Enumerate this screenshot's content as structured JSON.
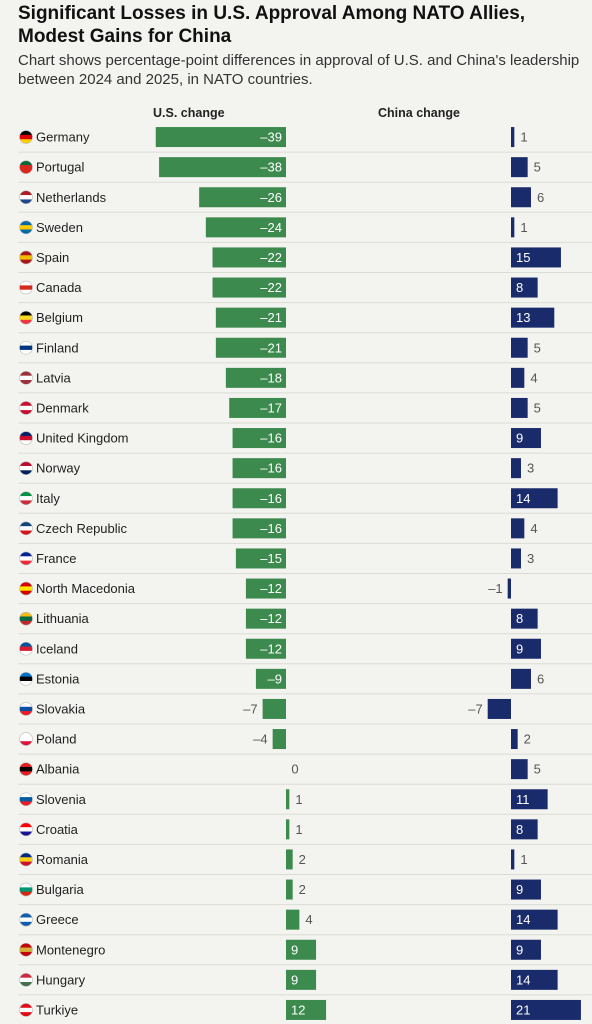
{
  "title": "Significant Losses in U.S. Approval Among NATO Allies, Modest Gains for China",
  "subtitle": "Chart shows percentage-point differences in approval of U.S. and China's leadership between 2024 and 2025, in NATO countries.",
  "colors": {
    "us_bar": "#3d8a4e",
    "china_bar": "#1a2b6b",
    "value_outside": "#555555",
    "value_inside": "#ffffff",
    "row_separator": "#dcdcd6",
    "axis": "#c9c9c3"
  },
  "chart_data": [
    {
      "type": "bar",
      "orientation": "horizontal",
      "title": "U.S. change",
      "categories": [
        "Germany",
        "Portugal",
        "Netherlands",
        "Sweden",
        "Spain",
        "Canada",
        "Belgium",
        "Finland",
        "Latvia",
        "Denmark",
        "United Kingdom",
        "Norway",
        "Italy",
        "Czech Republic",
        "France",
        "North Macedonia",
        "Lithuania",
        "Iceland",
        "Estonia",
        "Slovakia",
        "Poland",
        "Albania",
        "Slovenia",
        "Croatia",
        "Romania",
        "Bulgaria",
        "Greece",
        "Montenegro",
        "Hungary",
        "Turkiye"
      ],
      "values": [
        -39,
        -38,
        -26,
        -24,
        -22,
        -22,
        -21,
        -21,
        -18,
        -17,
        -16,
        -16,
        -16,
        -16,
        -15,
        -12,
        -12,
        -12,
        -9,
        -7,
        -4,
        0,
        1,
        1,
        2,
        2,
        4,
        9,
        9,
        12
      ],
      "value_labels": [
        "–39",
        "–38",
        "–26",
        "–24",
        "–22",
        "–22",
        "–21",
        "–21",
        "–18",
        "–17",
        "–16",
        "–16",
        "–16",
        "–16",
        "–15",
        "–12",
        "–12",
        "–12",
        "–9",
        "–7",
        "–4",
        "0",
        "1",
        "1",
        "2",
        "2",
        "4",
        "9",
        "9",
        "12"
      ]
    },
    {
      "type": "bar",
      "orientation": "horizontal",
      "title": "China change",
      "categories": [
        "Germany",
        "Portugal",
        "Netherlands",
        "Sweden",
        "Spain",
        "Canada",
        "Belgium",
        "Finland",
        "Latvia",
        "Denmark",
        "United Kingdom",
        "Norway",
        "Italy",
        "Czech Republic",
        "France",
        "North Macedonia",
        "Lithuania",
        "Iceland",
        "Estonia",
        "Slovakia",
        "Poland",
        "Albania",
        "Slovenia",
        "Croatia",
        "Romania",
        "Bulgaria",
        "Greece",
        "Montenegro",
        "Hungary",
        "Turkiye"
      ],
      "values": [
        1,
        5,
        6,
        1,
        15,
        8,
        13,
        5,
        4,
        5,
        9,
        3,
        14,
        4,
        3,
        -1,
        8,
        9,
        6,
        -7,
        2,
        5,
        11,
        8,
        1,
        9,
        14,
        9,
        14,
        21
      ],
      "value_labels": [
        "1",
        "5",
        "6",
        "1",
        "15",
        "8",
        "13",
        "5",
        "4",
        "5",
        "9",
        "3",
        "14",
        "4",
        "3",
        "–1",
        "8",
        "9",
        "6",
        "–7",
        "2",
        "5",
        "11",
        "8",
        "1",
        "9",
        "14",
        "9",
        "14",
        "21"
      ]
    }
  ],
  "flags": [
    [
      "#000000",
      "#dd0000",
      "#ffce00"
    ],
    [
      "#046a38",
      "#da291c",
      "#da291c"
    ],
    [
      "#ae1c28",
      "#ffffff",
      "#21468b"
    ],
    [
      "#006aa7",
      "#fecc00",
      "#006aa7"
    ],
    [
      "#aa151b",
      "#f1bf00",
      "#aa151b"
    ],
    [
      "#ffffff",
      "#d52b1e",
      "#ffffff"
    ],
    [
      "#000000",
      "#fdda24",
      "#ef3340"
    ],
    [
      "#ffffff",
      "#003580",
      "#ffffff"
    ],
    [
      "#9e3039",
      "#ffffff",
      "#9e3039"
    ],
    [
      "#c8102e",
      "#ffffff",
      "#c8102e"
    ],
    [
      "#012169",
      "#c8102e",
      "#ffffff"
    ],
    [
      "#ba0c2f",
      "#ffffff",
      "#00205b"
    ],
    [
      "#009246",
      "#ffffff",
      "#ce2b37"
    ],
    [
      "#11457e",
      "#ffffff",
      "#d7141a"
    ],
    [
      "#002395",
      "#ffffff",
      "#ed2939"
    ],
    [
      "#d20000",
      "#ffe600",
      "#d20000"
    ],
    [
      "#fdb913",
      "#006a44",
      "#c1272d"
    ],
    [
      "#02529c",
      "#dc1e35",
      "#ffffff"
    ],
    [
      "#0072ce",
      "#000000",
      "#ffffff"
    ],
    [
      "#ffffff",
      "#0b4ea2",
      "#ee1c25"
    ],
    [
      "#ffffff",
      "#ffffff",
      "#dc143c"
    ],
    [
      "#e41e20",
      "#000000",
      "#e41e20"
    ],
    [
      "#ffffff",
      "#005da4",
      "#ed1c24"
    ],
    [
      "#ff0000",
      "#ffffff",
      "#171796"
    ],
    [
      "#002b7f",
      "#fcd116",
      "#ce1126"
    ],
    [
      "#ffffff",
      "#00966e",
      "#d62612"
    ],
    [
      "#0d5eaf",
      "#ffffff",
      "#0d5eaf"
    ],
    [
      "#c40308",
      "#d4af3a",
      "#c40308"
    ],
    [
      "#cd2a3e",
      "#ffffff",
      "#436f4d"
    ],
    [
      "#e30a17",
      "#ffffff",
      "#e30a17"
    ]
  ]
}
